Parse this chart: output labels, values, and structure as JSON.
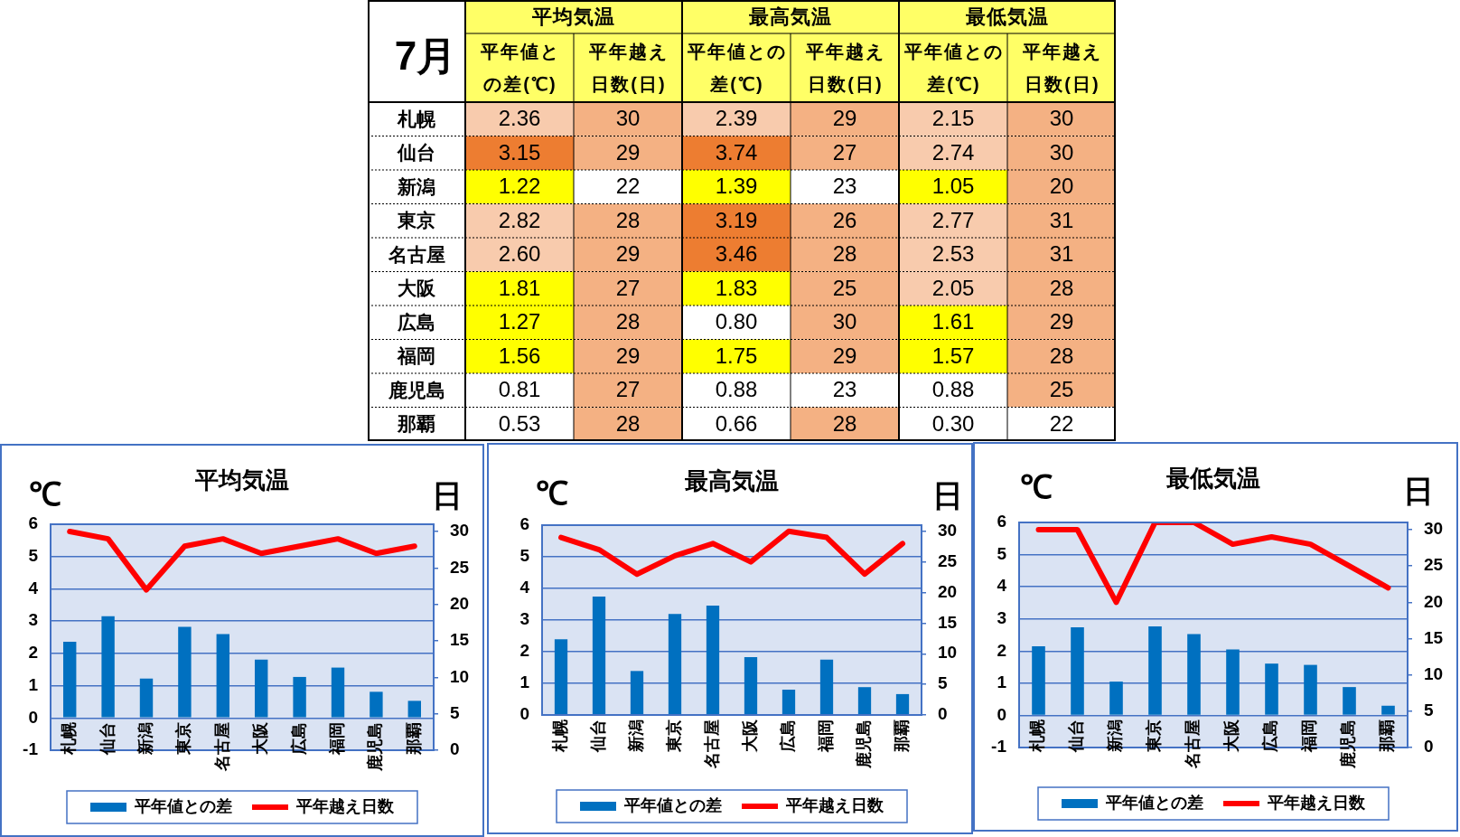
{
  "chart_data": [
    {
      "type": "heatmap",
      "title": "7月",
      "annotations": [
        "平均気温",
        "最高気温",
        "最低気温"
      ],
      "categories": [
        "平年値との差(℃)",
        "平年越え日数(日)",
        "平年値との差(℃)",
        "平年越え日数(日)",
        "平年値との差(℃)",
        "平年越え日数(日)"
      ],
      "y_categories": [
        "札幌",
        "仙台",
        "新潟",
        "東京",
        "名古屋",
        "大阪",
        "広島",
        "福岡",
        "鹿児島",
        "那覇"
      ],
      "cells": [
        [
          2.36,
          30,
          2.39,
          29,
          2.15,
          30
        ],
        [
          3.15,
          29,
          3.74,
          27,
          2.74,
          30
        ],
        [
          1.22,
          22,
          1.39,
          23,
          1.05,
          20
        ],
        [
          2.82,
          28,
          3.19,
          26,
          2.77,
          31
        ],
        [
          2.6,
          29,
          3.46,
          28,
          2.53,
          31
        ],
        [
          1.81,
          27,
          1.83,
          25,
          2.05,
          28
        ],
        [
          1.27,
          28,
          0.8,
          30,
          1.61,
          29
        ],
        [
          1.56,
          29,
          1.75,
          29,
          1.57,
          28
        ],
        [
          0.81,
          27,
          0.88,
          23,
          0.88,
          25
        ],
        [
          0.53,
          28,
          0.66,
          28,
          0.3,
          22
        ]
      ],
      "cell_labels": [
        [
          "2.36",
          "30",
          "2.39",
          "29",
          "2.15",
          "30"
        ],
        [
          "3.15",
          "29",
          "3.74",
          "27",
          "2.74",
          "30"
        ],
        [
          "1.22",
          "22",
          "1.39",
          "23",
          "1.05",
          "20"
        ],
        [
          "2.82",
          "28",
          "3.19",
          "26",
          "2.77",
          "31"
        ],
        [
          "2.60",
          "29",
          "3.46",
          "28",
          "2.53",
          "31"
        ],
        [
          "1.81",
          "27",
          "1.83",
          "25",
          "2.05",
          "28"
        ],
        [
          "1.27",
          "28",
          "0.80",
          "30",
          "1.61",
          "29"
        ],
        [
          "1.56",
          "29",
          "1.75",
          "29",
          "1.57",
          "28"
        ],
        [
          "0.81",
          "27",
          "0.88",
          "23",
          "0.88",
          "25"
        ],
        [
          "0.53",
          "28",
          "0.66",
          "28",
          "0.30",
          "22"
        ]
      ]
    },
    {
      "type": "bar",
      "title": "平均気温",
      "ylabel": "℃",
      "y2label": "日",
      "categories": [
        "札幌",
        "仙台",
        "新潟",
        "東京",
        "名古屋",
        "大阪",
        "広島",
        "福岡",
        "鹿児島",
        "那覇"
      ],
      "series": [
        {
          "name": "平年値との差",
          "type": "bar",
          "color": "#0070c0",
          "values": [
            2.36,
            3.15,
            1.22,
            2.82,
            2.6,
            1.81,
            1.27,
            1.56,
            0.81,
            0.53
          ]
        },
        {
          "name": "平年越え日数",
          "type": "line",
          "axis": "y2",
          "color": "#ff0000",
          "values": [
            30,
            29,
            22,
            28,
            29,
            27,
            28,
            29,
            27,
            28
          ]
        }
      ],
      "ylim": [
        -1,
        6
      ],
      "yticks": [
        -1,
        0,
        1,
        2,
        3,
        4,
        5,
        6
      ],
      "y2lim": [
        0,
        31
      ],
      "y2ticks": [
        0,
        5,
        10,
        15,
        20,
        25,
        30
      ],
      "grid": "y",
      "legend": "bottom",
      "marker": "none",
      "line_style": "solid"
    },
    {
      "type": "bar",
      "title": "最高気温",
      "ylabel": "℃",
      "y2label": "日",
      "categories": [
        "札幌",
        "仙台",
        "新潟",
        "東京",
        "名古屋",
        "大阪",
        "広島",
        "福岡",
        "鹿児島",
        "那覇"
      ],
      "series": [
        {
          "name": "平年値との差",
          "type": "bar",
          "color": "#0070c0",
          "values": [
            2.39,
            3.74,
            1.39,
            3.19,
            3.46,
            1.83,
            0.8,
            1.75,
            0.88,
            0.66
          ]
        },
        {
          "name": "平年越え日数",
          "type": "line",
          "axis": "y2",
          "color": "#ff0000",
          "values": [
            29,
            27,
            23,
            26,
            28,
            25,
            30,
            29,
            23,
            28
          ]
        }
      ],
      "ylim": [
        0,
        6
      ],
      "yticks": [
        0,
        1,
        2,
        3,
        4,
        5,
        6
      ],
      "y2lim": [
        0,
        31
      ],
      "y2ticks": [
        0,
        5,
        10,
        15,
        20,
        25,
        30
      ],
      "grid": "y",
      "legend": "bottom",
      "marker": "none",
      "line_style": "solid"
    },
    {
      "type": "bar",
      "title": "最低気温",
      "ylabel": "℃",
      "y2label": "日",
      "categories": [
        "札幌",
        "仙台",
        "新潟",
        "東京",
        "名古屋",
        "大阪",
        "広島",
        "福岡",
        "鹿児島",
        "那覇"
      ],
      "series": [
        {
          "name": "平年値との差",
          "type": "bar",
          "color": "#0070c0",
          "values": [
            2.15,
            2.74,
            1.05,
            2.77,
            2.53,
            2.05,
            1.61,
            1.57,
            0.88,
            0.3
          ]
        },
        {
          "name": "平年越え日数",
          "type": "line",
          "axis": "y2",
          "color": "#ff0000",
          "values": [
            30,
            30,
            20,
            31,
            31,
            28,
            29,
            28,
            25,
            22
          ]
        }
      ],
      "ylim": [
        -1,
        6
      ],
      "yticks": [
        -1,
        0,
        1,
        2,
        3,
        4,
        5,
        6
      ],
      "y2lim": [
        0,
        31
      ],
      "y2ticks": [
        0,
        5,
        10,
        15,
        20,
        25,
        30
      ],
      "grid": "y",
      "legend": "bottom",
      "marker": "none",
      "line_style": "solid"
    }
  ]
}
